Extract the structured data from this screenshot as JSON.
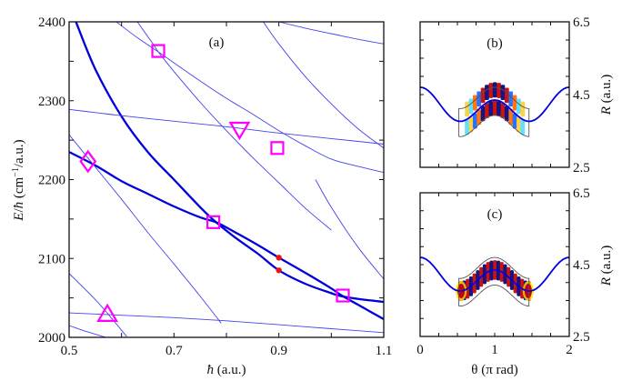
{
  "chart_data": [
    {
      "id": "a",
      "type": "line",
      "panel_label": "(a)",
      "xlabel": "ħ (a.u.)",
      "ylabel": "E/ħ (cm⁻¹/a.u.)",
      "xlim": [
        0.5,
        1.1
      ],
      "ylim": [
        2000,
        2400
      ],
      "xticks": [
        0.5,
        0.6,
        0.7,
        0.8,
        0.9,
        1.0,
        1.1
      ],
      "xtick_labels": [
        "0.5",
        "",
        "0.7",
        "",
        "0.9",
        "",
        "1.1"
      ],
      "yticks": [
        2000,
        2050,
        2100,
        2150,
        2200,
        2250,
        2300,
        2350,
        2400
      ],
      "ytick_labels": [
        "2000",
        "",
        "2100",
        "",
        "2200",
        "",
        "2300",
        "",
        "2400"
      ],
      "grid": false,
      "series": [
        {
          "name": "thick-level-1",
          "style": "thick",
          "color": "#0000dd",
          "x": [
            0.513,
            0.55,
            0.6,
            0.65,
            0.7,
            0.75,
            0.78,
            0.82,
            0.86,
            0.9,
            0.95,
            1.0,
            1.02,
            1.06,
            1.1
          ],
          "y": [
            2400,
            2340,
            2280,
            2235,
            2200,
            2165,
            2146,
            2125,
            2106,
            2085,
            2068,
            2056,
            2052,
            2048,
            2045
          ]
        },
        {
          "name": "thick-level-2",
          "style": "thick",
          "color": "#0000dd",
          "x": [
            0.5,
            0.55,
            0.6,
            0.65,
            0.7,
            0.75,
            0.78,
            0.82,
            0.86,
            0.9,
            0.95,
            1.0,
            1.02,
            1.06,
            1.1
          ],
          "y": [
            2235,
            2218,
            2198,
            2182,
            2166,
            2152,
            2146,
            2132,
            2117,
            2101,
            2082,
            2062,
            2053,
            2038,
            2023
          ]
        },
        {
          "name": "level-3",
          "style": "thin",
          "color": "#4444ee",
          "x": [
            0.5,
            0.55,
            0.6,
            0.7,
            0.8,
            0.9,
            1.0,
            1.1
          ],
          "y": [
            2289,
            2285,
            2281,
            2274,
            2267,
            2259,
            2252,
            2245
          ]
        },
        {
          "name": "level-4",
          "style": "thin",
          "color": "#4444ee",
          "x": [
            0.59,
            0.63,
            0.67,
            0.7,
            0.75,
            0.8,
            0.85,
            0.9,
            0.95,
            1.0,
            1.05,
            1.1
          ],
          "y": [
            2400,
            2380,
            2362,
            2348,
            2325,
            2303,
            2283,
            2262,
            2243,
            2226,
            2217,
            2209
          ]
        },
        {
          "name": "level-5",
          "style": "thin",
          "color": "#4444ee",
          "x": [
            0.63,
            0.66,
            0.67,
            0.7,
            0.75,
            0.8,
            0.85,
            0.9,
            0.95,
            1.0
          ],
          "y": [
            2400,
            2372,
            2362,
            2337,
            2298,
            2262,
            2228,
            2196,
            2164,
            2136
          ]
        },
        {
          "name": "level-6",
          "style": "thin",
          "color": "#4444ee",
          "x": [
            0.87,
            0.9,
            0.95,
            1.0,
            1.05,
            1.1
          ],
          "y": [
            2400,
            2372,
            2331,
            2296,
            2265,
            2240
          ]
        },
        {
          "name": "level-7",
          "style": "thin",
          "color": "#4444ee",
          "x": [
            0.9,
            0.95,
            1.0,
            1.05,
            1.1
          ],
          "y": [
            2400,
            2392,
            2385,
            2378,
            2372
          ]
        },
        {
          "name": "level-8",
          "style": "thin",
          "color": "#4444ee",
          "x": [
            0.5,
            0.54,
            0.6,
            0.65,
            0.7,
            0.75,
            0.79
          ],
          "y": [
            2257,
            2224,
            2175,
            2133,
            2093,
            2052,
            2018
          ]
        },
        {
          "name": "level-9",
          "style": "thin",
          "color": "#4444ee",
          "x": [
            0.5,
            0.6,
            0.7,
            0.8,
            0.9,
            1.0,
            1.1
          ],
          "y": [
            2031,
            2028,
            2025,
            2021,
            2016,
            2011,
            2006
          ]
        },
        {
          "name": "level-10",
          "style": "thin",
          "color": "#4444ee",
          "x": [
            0.5,
            0.55,
            0.58,
            0.6,
            0.61
          ],
          "y": [
            2081,
            2048,
            2025,
            2009,
            2001
          ]
        },
        {
          "name": "level-11",
          "style": "thin",
          "color": "#4444ee",
          "x": [
            0.5,
            0.53,
            0.57
          ],
          "y": [
            2015,
            2008,
            2000
          ]
        },
        {
          "name": "level-12",
          "style": "thin",
          "color": "#4444ee",
          "x": [
            0.97,
            1.0,
            1.05,
            1.1
          ],
          "y": [
            2200,
            2165,
            2115,
            2074
          ]
        }
      ],
      "markers": [
        {
          "shape": "square",
          "x": 0.67,
          "y": 2363,
          "color": "#ff00ff"
        },
        {
          "shape": "diamond",
          "x": 0.536,
          "y": 2223,
          "color": "#ff00ff"
        },
        {
          "shape": "triangle-down",
          "x": 0.825,
          "y": 2264,
          "color": "#ff00ff"
        },
        {
          "shape": "square",
          "x": 0.897,
          "y": 2240,
          "color": "#ff00ff"
        },
        {
          "shape": "square",
          "x": 0.775,
          "y": 2146,
          "color": "#ff00ff"
        },
        {
          "shape": "square",
          "x": 1.022,
          "y": 2053,
          "color": "#ff00ff"
        },
        {
          "shape": "triangle-up",
          "x": 0.573,
          "y": 2029,
          "color": "#ff00ff"
        },
        {
          "shape": "dot",
          "x": 0.9,
          "y": 2101,
          "color": "#ee1111"
        },
        {
          "shape": "dot",
          "x": 0.9,
          "y": 2085,
          "color": "#ee1111"
        }
      ]
    },
    {
      "id": "b",
      "type": "heatmap",
      "panel_label": "(b)",
      "xlabel": "",
      "ylabel": "R (a.u.)",
      "xlim": [
        0,
        2
      ],
      "ylim": [
        2.5,
        6.5
      ],
      "yticks": [
        2.5,
        3.0,
        3.5,
        4.0,
        4.5,
        5.0,
        5.5,
        6.0,
        6.5
      ],
      "ytick_labels": [
        "2.5",
        "",
        "",
        "",
        "4.5",
        "",
        "",
        "",
        "6.5"
      ],
      "xticks": [
        0,
        0.25,
        0.5,
        0.75,
        1.0,
        1.25,
        1.5,
        1.75,
        2.0
      ],
      "xtick_labels": [],
      "potential_curve": "R_min(θ): 4.7 at θ=0 and 2, 3.5 near θ=0.5/1.5, 4.4 at θ=1",
      "wavefunction": "nodal pattern along the potential valley near θ=1 with one radial node"
    },
    {
      "id": "c",
      "type": "heatmap",
      "panel_label": "(c)",
      "xlabel": "θ (π rad)",
      "ylabel": "R (a.u.)",
      "xlim": [
        0,
        2
      ],
      "ylim": [
        2.5,
        6.5
      ],
      "xticks": [
        0,
        0.25,
        0.5,
        0.75,
        1.0,
        1.25,
        1.5,
        1.75,
        2.0
      ],
      "xtick_labels": [
        "0",
        "",
        "",
        "",
        "1",
        "",
        "",
        "",
        "2"
      ],
      "yticks": [
        2.5,
        3.0,
        3.5,
        4.0,
        4.5,
        5.0,
        5.5,
        6.0,
        6.5
      ],
      "ytick_labels": [
        "2.5",
        "",
        "",
        "",
        "4.5",
        "",
        "",
        "",
        "6.5"
      ],
      "potential_curve": "R_min(θ): 4.7 at θ=0 and 2, 3.5 near θ=0.5/1.5, 4.4 at θ=1",
      "wavefunction": "nodal pattern along the full valley (θ≈0.5–1.5), no radial node"
    }
  ],
  "colors": {
    "thick_curve": "#0000dd",
    "thin_curve": "#4444ee",
    "marker": "#ff00ff",
    "dot": "#ee1111",
    "axis": "#111111",
    "contour": "#555555"
  }
}
